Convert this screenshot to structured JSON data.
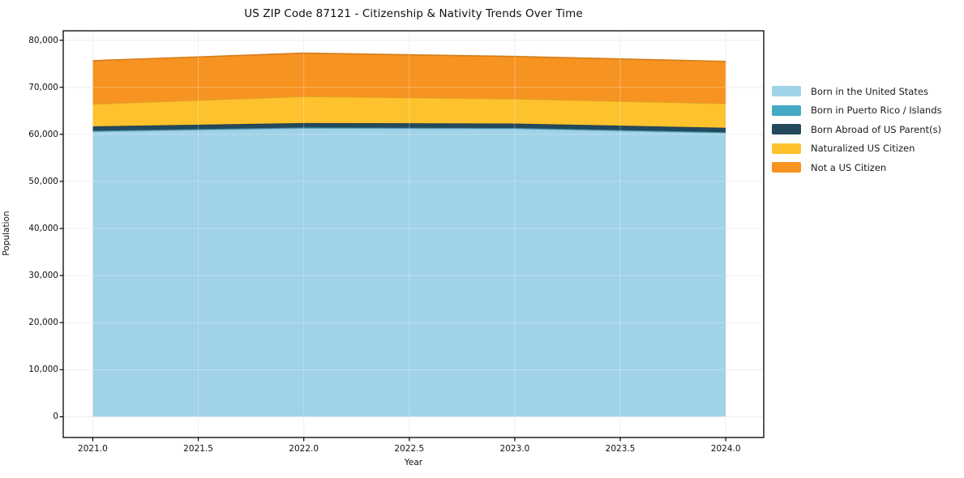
{
  "chart_data": {
    "type": "area",
    "stacked": true,
    "title": "US ZIP Code 87121 - Citizenship & Nativity Trends Over Time",
    "xlabel": "Year",
    "ylabel": "Population",
    "x": [
      2021,
      2022,
      2023,
      2024
    ],
    "series": [
      {
        "name": "Born in the United States",
        "color": "#a0d2e8",
        "values": [
          60600,
          61300,
          61200,
          60300
        ]
      },
      {
        "name": "Born in Puerto Rico / Islands",
        "color": "#45a9c6",
        "values": [
          150,
          150,
          150,
          150
        ]
      },
      {
        "name": "Born Abroad of US Parent(s)",
        "color": "#23495c",
        "values": [
          950,
          950,
          950,
          950
        ]
      },
      {
        "name": "Naturalized US Citizen",
        "color": "#fdc22d",
        "values": [
          4750,
          5650,
          5250,
          5150
        ]
      },
      {
        "name": "Not a US Citizen",
        "color": "#f79320",
        "values": [
          9200,
          9200,
          9000,
          8950
        ]
      }
    ],
    "xticks": [
      2021.0,
      2021.5,
      2022.0,
      2022.5,
      2023.0,
      2023.5,
      2024.0
    ],
    "xtick_labels": [
      "2021.0",
      "2021.5",
      "2022.0",
      "2022.5",
      "2023.0",
      "2023.5",
      "2024.0"
    ],
    "yticks": [
      0,
      10000,
      20000,
      30000,
      40000,
      50000,
      60000,
      70000,
      80000
    ],
    "ytick_labels": [
      "0",
      "10,000",
      "20,000",
      "30,000",
      "40,000",
      "50,000",
      "60,000",
      "70,000",
      "80,000"
    ],
    "xlim": [
      2020.86,
      2024.18
    ],
    "ylim": [
      -4400,
      82000
    ],
    "grid": true,
    "legend_position": "right-outside",
    "colors": {
      "background": "#ffffff",
      "gridline": "#e9e9e9",
      "axis": "#000000",
      "text": "#111111"
    }
  }
}
